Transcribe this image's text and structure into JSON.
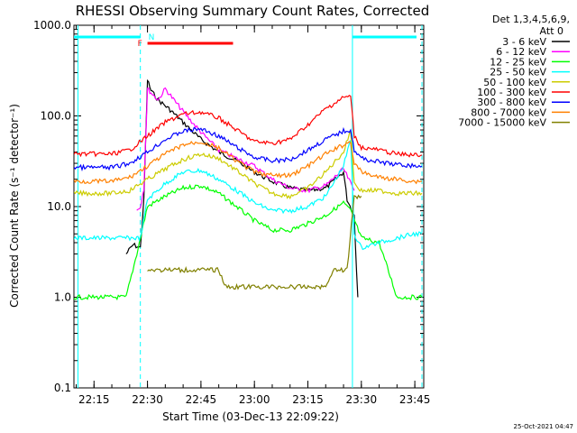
{
  "chart_data": {
    "type": "line",
    "title": "RHESSI Observing Summary Count Rates, Corrected",
    "xlabel": "Start Time (03-Dec-13 22:09:22)",
    "ylabel": "Corrected Count Rate (s⁻¹ detector⁻¹)",
    "yscale": "log",
    "ylim": [
      0.1,
      1000
    ],
    "xlim": [
      "22:09:22",
      "23:47:30"
    ],
    "yticks": [
      "0.1",
      "1.0",
      "10.0",
      "100.0",
      "1000.0"
    ],
    "xticks": [
      "22:15",
      "22:30",
      "22:45",
      "23:00",
      "23:15",
      "23:30",
      "23:45"
    ],
    "legend_header": [
      "Det 1,3,4,5,6,9,",
      "Att 0"
    ],
    "legend_position": "right",
    "timestamp": "25-Oct-2021 04:47",
    "flags": {
      "N_label": "N",
      "F_label": "F",
      "night": [
        [
          "22:09:22",
          "22:28:00"
        ],
        [
          "23:27:30",
          "23:47:30"
        ]
      ],
      "flare": [
        "22:30:00",
        "22:54:00"
      ]
    },
    "vlines_dashed": [
      "22:28:00",
      "23:47:00"
    ],
    "vlines_solid": [
      "22:10:30",
      "23:27:30"
    ],
    "series": [
      {
        "name": "3 - 6 keV",
        "color": "#000000",
        "x": [
          "22:24",
          "22:26",
          "22:28",
          "22:29",
          "22:30",
          "22:31",
          "22:33",
          "22:36",
          "22:40",
          "22:45",
          "22:50",
          "22:55",
          "23:00",
          "23:05",
          "23:10",
          "23:15",
          "23:20",
          "23:25",
          "23:26",
          "23:28",
          "23:29"
        ],
        "y": [
          3.0,
          3.8,
          3.5,
          12,
          250,
          190,
          150,
          120,
          85,
          55,
          40,
          32,
          24,
          19,
          16,
          15,
          16,
          24,
          12,
          8,
          1.0
        ]
      },
      {
        "name": "6 - 12 keV",
        "color": "#ff00ff",
        "x": [
          "22:27",
          "22:28",
          "22:29",
          "22:30",
          "22:31",
          "22:33",
          "22:35",
          "22:38",
          "22:42",
          "22:46",
          "22:50",
          "22:55",
          "23:00",
          "23:05",
          "23:10",
          "23:15",
          "23:20",
          "23:25",
          "23:27",
          "23:28"
        ],
        "y": [
          9,
          10,
          16,
          200,
          180,
          150,
          200,
          140,
          90,
          60,
          42,
          34,
          28,
          20,
          16,
          15,
          17,
          26,
          18,
          15
        ]
      },
      {
        "name": "12 - 25 keV",
        "color": "#00ff00",
        "x": [
          "22:09:22",
          "22:20",
          "22:24",
          "22:27",
          "22:30",
          "22:35",
          "22:40",
          "22:45",
          "22:50",
          "22:55",
          "23:00",
          "23:05",
          "23:10",
          "23:15",
          "23:20",
          "23:25",
          "23:27",
          "23:30",
          "23:35",
          "23:40",
          "23:45",
          "23:47"
        ],
        "y": [
          1.0,
          1.0,
          1.0,
          3.0,
          10,
          13,
          16,
          17,
          14,
          10,
          7,
          5.5,
          5.5,
          6.5,
          8,
          11,
          9,
          4.5,
          4.0,
          1.0,
          1.0,
          1.0
        ]
      },
      {
        "name": "25 - 50 keV",
        "color": "#00ffff",
        "x": [
          "22:09:22",
          "22:20",
          "22:27",
          "22:28",
          "22:30",
          "22:35",
          "22:40",
          "22:45",
          "22:50",
          "22:55",
          "23:00",
          "23:05",
          "23:10",
          "23:15",
          "23:20",
          "23:25",
          "23:27",
          "23:28",
          "23:30",
          "23:35",
          "23:40",
          "23:45",
          "23:47"
        ],
        "y": [
          4.5,
          4.5,
          4.5,
          4.5,
          12,
          18,
          24,
          25,
          20,
          15,
          11,
          9,
          9,
          10,
          13,
          28,
          55,
          5,
          3.5,
          4.0,
          4.5,
          5.0,
          5.0
        ]
      },
      {
        "name": "50 - 100 keV",
        "color": "#cccc00",
        "x": [
          "22:09:22",
          "22:20",
          "22:25",
          "22:30",
          "22:35",
          "22:40",
          "22:45",
          "22:50",
          "22:55",
          "23:00",
          "23:05",
          "23:10",
          "23:15",
          "23:20",
          "23:25",
          "23:27",
          "23:28",
          "23:30",
          "23:35",
          "23:40",
          "23:45",
          "23:47"
        ],
        "y": [
          14,
          14,
          15,
          20,
          26,
          33,
          38,
          34,
          25,
          18,
          14,
          13,
          16,
          24,
          40,
          70,
          18,
          15,
          15,
          14,
          14,
          14
        ]
      },
      {
        "name": "100 - 300 keV",
        "color": "#ff0000",
        "x": [
          "22:09:22",
          "22:20",
          "22:25",
          "22:30",
          "22:35",
          "22:40",
          "22:45",
          "22:50",
          "22:55",
          "23:00",
          "23:05",
          "23:10",
          "23:15",
          "23:20",
          "23:25",
          "23:27",
          "23:28",
          "23:30",
          "23:35",
          "23:40",
          "23:45",
          "23:47"
        ],
        "y": [
          38,
          38,
          42,
          60,
          85,
          105,
          110,
          95,
          70,
          52,
          50,
          55,
          80,
          120,
          160,
          165,
          60,
          45,
          42,
          38,
          37,
          37
        ]
      },
      {
        "name": "300 - 800 keV",
        "color": "#0000ff",
        "x": [
          "22:09:22",
          "22:20",
          "22:25",
          "22:30",
          "22:35",
          "22:40",
          "22:45",
          "22:50",
          "22:55",
          "23:00",
          "23:05",
          "23:10",
          "23:15",
          "23:20",
          "23:25",
          "23:27",
          "23:28",
          "23:30",
          "23:35",
          "23:40",
          "23:45",
          "23:47"
        ],
        "y": [
          27,
          27,
          30,
          40,
          55,
          68,
          72,
          60,
          45,
          35,
          32,
          33,
          42,
          55,
          68,
          70,
          42,
          34,
          31,
          29,
          28,
          28
        ]
      },
      {
        "name": "800 - 7000 keV",
        "color": "#ff8000",
        "x": [
          "22:09:22",
          "22:20",
          "22:25",
          "22:30",
          "22:35",
          "22:40",
          "22:45",
          "22:50",
          "22:55",
          "23:00",
          "23:05",
          "23:10",
          "23:15",
          "23:20",
          "23:25",
          "23:27",
          "23:28",
          "23:30",
          "23:35",
          "23:40",
          "23:45",
          "23:47"
        ],
        "y": [
          19,
          19,
          21,
          28,
          38,
          48,
          52,
          44,
          32,
          24,
          22,
          22,
          28,
          38,
          48,
          52,
          30,
          24,
          21,
          20,
          19,
          19
        ]
      },
      {
        "name": "7000 - 15000 keV",
        "color": "#808000",
        "x": [
          "22:30",
          "22:35",
          "22:40",
          "22:45",
          "22:50",
          "22:52",
          "23:20",
          "23:22",
          "23:24",
          "23:26",
          "23:28",
          "23:30"
        ],
        "y": [
          2.0,
          2.0,
          2.0,
          2.0,
          2.0,
          1.3,
          1.3,
          2.0,
          2.0,
          2.0,
          13,
          13
        ]
      }
    ]
  }
}
